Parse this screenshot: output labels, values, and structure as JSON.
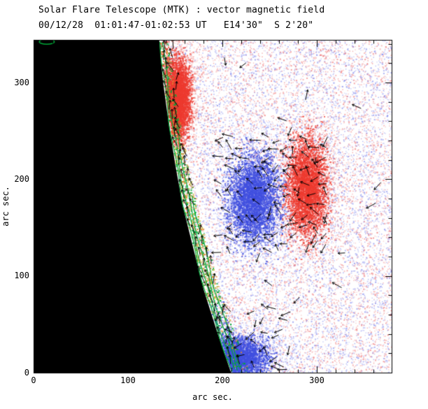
{
  "figure": {
    "title": "Solar Flare Telescope (MTK) : vector magnetic field",
    "subtitle": "00/12/28  01:01:47-01:02:53 UT   E14'30\"  S 2'20\"",
    "xlabel": "arc sec.",
    "ylabel": "arc sec.",
    "xtick_labels": [
      "0",
      "100",
      "200",
      "300"
    ],
    "ytick_labels": [
      "0",
      "100",
      "200",
      "300"
    ]
  },
  "chart_data": {
    "type": "heatmap",
    "title": "Solar Flare Telescope (MTK) : vector magnetic field",
    "subtitle": "00/12/28  01:01:47-01:02:53 UT   E14'30\"  S 2'20\"",
    "xlabel": "arc sec.",
    "ylabel": "arc sec.",
    "xlim": [
      0,
      379
    ],
    "ylim": [
      0,
      344
    ],
    "xticks": [
      0,
      100,
      200,
      300
    ],
    "yticks": [
      0,
      100,
      200,
      300
    ],
    "minor_tick_step": 20,
    "grid": false,
    "legend": "none",
    "colors": {
      "positive_polarity": "#ee3b30",
      "negative_polarity": "#4150e0",
      "noise_positive": "#f07878",
      "noise_negative": "#8088ee",
      "contour": "#00a838",
      "band_orange": "#dd8c2c",
      "band_yellow": "#b6bd2e",
      "vectors": "#000000",
      "off_limb": "#000000",
      "frame": "#000000",
      "background": "#ffffff"
    },
    "solar_limb": {
      "description": "East solar limb; region left of this curve is off-disk and rendered black",
      "points": [
        [
          133,
          344
        ],
        [
          137,
          301
        ],
        [
          143,
          258
        ],
        [
          150,
          215
        ],
        [
          158,
          172
        ],
        [
          169,
          129
        ],
        [
          180,
          86
        ],
        [
          194,
          43
        ],
        [
          209,
          0
        ]
      ]
    },
    "magnetic_features": [
      {
        "name": "disk-negative-spot",
        "polarity": "negative",
        "x": 232,
        "y": 180,
        "rx": 26,
        "ry": 44
      },
      {
        "name": "disk-positive-spot",
        "polarity": "positive",
        "x": 289,
        "y": 192,
        "rx": 20,
        "ry": 48
      },
      {
        "name": "limb-positive-region",
        "polarity": "positive",
        "x": 152,
        "y": 284,
        "rx": 13,
        "ry": 38
      },
      {
        "name": "limb-negative-region",
        "polarity": "negative",
        "x": 212,
        "y": 16,
        "rx": 32,
        "ry": 20
      }
    ],
    "limb_band": {
      "description": "mixed strong-field band hugging the limb, traced by green contour lines",
      "contour_offsets_arcsec": [
        1,
        4,
        8,
        12
      ]
    },
    "small_contour": {
      "x": 14,
      "y": 342,
      "rx": 8,
      "ry": 2.5
    },
    "vector_field": {
      "description": "short black arrows = transverse magnetic field vectors",
      "clusters": [
        {
          "name": "active-region",
          "x": [
            200,
            316
          ],
          "y": [
            122,
            242
          ],
          "spacing": 10
        },
        {
          "name": "limb-band",
          "along_limb": true,
          "spacing_arcsec": 10
        },
        {
          "name": "south-limb-region",
          "x": [
            186,
            280
          ],
          "y": [
            3,
            64
          ],
          "spacing": 12
        },
        {
          "name": "sparse-disk",
          "count": 18
        }
      ]
    },
    "noise": {
      "description": "weak mixed-polarity speckle field across the disk",
      "density": 24000
    }
  }
}
